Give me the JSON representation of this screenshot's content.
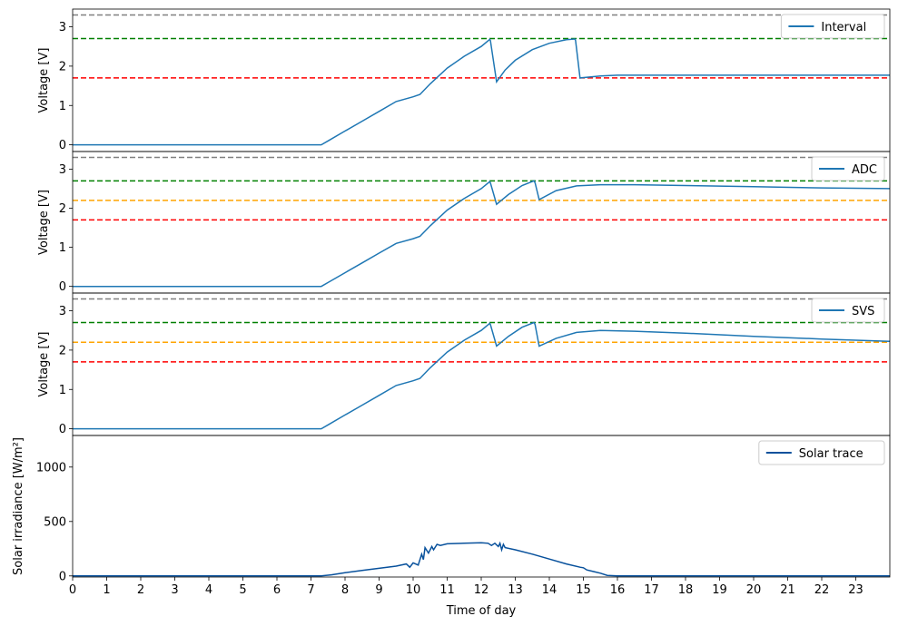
{
  "chart_data": [
    {
      "type": "line",
      "ylabel": "Voltage [V]",
      "ylim": [
        -0.17,
        3.45
      ],
      "yticks": [
        0,
        1,
        2,
        3
      ],
      "xlim": [
        0,
        24
      ],
      "hlines": [
        {
          "y": 3.3,
          "color": "#808080"
        },
        {
          "y": 2.7,
          "color": "#008000"
        },
        {
          "y": 1.7,
          "color": "#ff0000"
        }
      ],
      "legend": "top-right",
      "series": [
        {
          "name": "Interval",
          "color": "#1f77b4",
          "x": [
            0,
            7.3,
            7.5,
            8,
            8.5,
            9,
            9.5,
            10,
            10.2,
            10.5,
            11,
            11.5,
            12,
            12.25,
            12.27,
            12.45,
            12.7,
            13,
            13.5,
            14,
            14.5,
            14.75,
            14.77,
            14.9,
            15.5,
            16,
            24
          ],
          "y": [
            0,
            0,
            0.1,
            0.35,
            0.6,
            0.85,
            1.1,
            1.22,
            1.28,
            1.55,
            1.95,
            2.25,
            2.5,
            2.68,
            2.65,
            1.6,
            1.9,
            2.15,
            2.42,
            2.58,
            2.67,
            2.69,
            2.65,
            1.7,
            1.75,
            1.77,
            1.77
          ]
        }
      ]
    },
    {
      "type": "line",
      "ylabel": "Voltage [V]",
      "ylim": [
        -0.17,
        3.45
      ],
      "yticks": [
        0,
        1,
        2,
        3
      ],
      "xlim": [
        0,
        24
      ],
      "hlines": [
        {
          "y": 3.3,
          "color": "#808080"
        },
        {
          "y": 2.7,
          "color": "#008000"
        },
        {
          "y": 2.2,
          "color": "#ffa500"
        },
        {
          "y": 1.7,
          "color": "#ff0000"
        }
      ],
      "legend": "top-right",
      "series": [
        {
          "name": "ADC",
          "color": "#1f77b4",
          "x": [
            0,
            7.3,
            7.5,
            8,
            8.5,
            9,
            9.5,
            10,
            10.2,
            10.5,
            11,
            11.5,
            12,
            12.25,
            12.27,
            12.45,
            12.8,
            13.2,
            13.55,
            13.58,
            13.7,
            14.2,
            14.8,
            15.5,
            16.5,
            18,
            20,
            22,
            24
          ],
          "y": [
            0,
            0,
            0.1,
            0.35,
            0.6,
            0.85,
            1.1,
            1.22,
            1.28,
            1.55,
            1.95,
            2.25,
            2.5,
            2.68,
            2.65,
            2.1,
            2.35,
            2.58,
            2.7,
            2.65,
            2.22,
            2.45,
            2.57,
            2.6,
            2.6,
            2.58,
            2.55,
            2.52,
            2.5
          ]
        }
      ]
    },
    {
      "type": "line",
      "ylabel": "Voltage [V]",
      "ylim": [
        -0.17,
        3.45
      ],
      "yticks": [
        0,
        1,
        2,
        3
      ],
      "xlim": [
        0,
        24
      ],
      "hlines": [
        {
          "y": 3.3,
          "color": "#808080"
        },
        {
          "y": 2.7,
          "color": "#008000"
        },
        {
          "y": 2.2,
          "color": "#ffa500"
        },
        {
          "y": 1.7,
          "color": "#ff0000"
        }
      ],
      "legend": "top-right",
      "series": [
        {
          "name": "SVS",
          "color": "#1f77b4",
          "x": [
            0,
            7.3,
            7.5,
            8,
            8.5,
            9,
            9.5,
            10,
            10.2,
            10.5,
            11,
            11.5,
            12,
            12.25,
            12.27,
            12.45,
            12.8,
            13.2,
            13.55,
            13.58,
            13.7,
            14.2,
            14.8,
            15.5,
            16.5,
            18,
            20,
            22,
            24
          ],
          "y": [
            0,
            0,
            0.1,
            0.35,
            0.6,
            0.85,
            1.1,
            1.22,
            1.28,
            1.55,
            1.95,
            2.25,
            2.5,
            2.68,
            2.65,
            2.1,
            2.35,
            2.58,
            2.7,
            2.65,
            2.1,
            2.3,
            2.45,
            2.5,
            2.48,
            2.43,
            2.35,
            2.28,
            2.22
          ]
        }
      ]
    },
    {
      "type": "line",
      "ylabel": "Solar irradiance [W/m²]",
      "xlabel": "Time of day",
      "ylim": [
        -10,
        1290
      ],
      "yticks": [
        0,
        500,
        1000
      ],
      "xlim": [
        0,
        24
      ],
      "xticks": [
        0,
        1,
        2,
        3,
        4,
        5,
        6,
        7,
        8,
        9,
        10,
        11,
        12,
        13,
        14,
        15,
        16,
        17,
        18,
        19,
        20,
        21,
        22,
        23
      ],
      "legend": "top-right",
      "series": [
        {
          "name": "Solar trace",
          "color": "#08519c",
          "x": [
            0,
            7.3,
            7.6,
            8,
            8.5,
            9,
            9.5,
            9.8,
            9.9,
            10,
            10.15,
            10.25,
            10.3,
            10.35,
            10.45,
            10.55,
            10.6,
            10.7,
            10.8,
            11,
            11.5,
            12,
            12.2,
            12.3,
            12.4,
            12.5,
            12.55,
            12.6,
            12.65,
            12.7,
            13,
            13.5,
            14,
            14.5,
            14.9,
            15,
            15.1,
            15.3,
            15.5,
            15.7,
            16,
            24
          ],
          "y": [
            0,
            0,
            10,
            30,
            50,
            70,
            90,
            110,
            80,
            120,
            100,
            200,
            150,
            260,
            210,
            270,
            240,
            290,
            280,
            295,
            300,
            305,
            300,
            280,
            300,
            270,
            300,
            240,
            290,
            260,
            240,
            200,
            155,
            110,
            80,
            75,
            55,
            40,
            25,
            5,
            0,
            0
          ]
        }
      ]
    }
  ]
}
